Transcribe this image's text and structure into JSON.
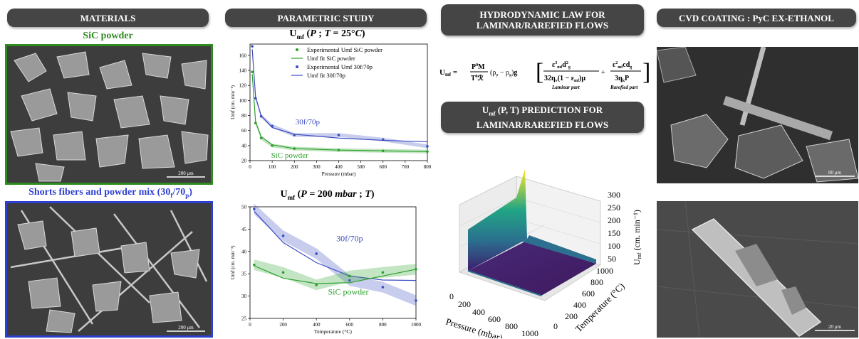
{
  "headers": {
    "materials": "MATERIALS",
    "parametric": "PARAMETRIC STUDY",
    "hydro": [
      "HYDRODYNAMIC LAW FOR",
      "LAMINAR/RAREFIED FLOWS"
    ],
    "prediction": [
      "Uₘᶠ (P, T) PREDICTION FOR",
      "LAMINAR/RAREFIED FLOWS"
    ],
    "cvd": "CVD COATING : PyC EX-ETHANOL"
  },
  "materials": {
    "sic_label": "SiC powder",
    "mix_label": "Shorts fibers and powder mix (30f/70p)",
    "scale1": "200 μm",
    "scale2": "200 μm"
  },
  "cvd": {
    "scale1": "80 μm",
    "scale2": "20 μm"
  },
  "colors": {
    "green": "#2ca02c",
    "blue": "#3b4cc0",
    "panel": "#454545"
  },
  "equation": {
    "lhs": "Umf =",
    "laminar": "Laminar part",
    "rarefied": "Rarefied part"
  },
  "chart_data": [
    {
      "type": "line",
      "title": "Umf (P ; T = 25°C)",
      "xlabel": "Pressure (mbar)",
      "ylabel": "Umf (cm. min⁻¹)",
      "xlim": [
        0,
        800
      ],
      "ylim": [
        20,
        175
      ],
      "xticks": [
        0,
        100,
        200,
        300,
        400,
        500,
        600,
        700,
        800
      ],
      "yticks": [
        20,
        40,
        60,
        80,
        100,
        120,
        140,
        160
      ],
      "legend": [
        "Experimental Umf SiC powder",
        "Umf fit SiC powder",
        "Experimental Umf 30f/70p",
        "Umf fit 30f/70p"
      ],
      "legend_position": "top-right",
      "annotations": [
        "30f/70p",
        "SiC powder"
      ],
      "series": [
        {
          "name": "Experimental Umf SiC powder",
          "x": [
            10,
            25,
            50,
            100,
            200,
            400,
            600,
            800
          ],
          "y": [
            138,
            70,
            50,
            40,
            36,
            34,
            33,
            32
          ]
        },
        {
          "name": "Umf fit SiC powder",
          "x": [
            10,
            25,
            50,
            100,
            200,
            400,
            600,
            800
          ],
          "y": [
            135,
            72,
            52,
            41,
            36,
            34,
            33,
            32
          ]
        },
        {
          "name": "Experimental Umf 30f/70p",
          "x": [
            10,
            25,
            50,
            100,
            200,
            400,
            600,
            800
          ],
          "y": [
            172,
            103,
            79,
            66,
            54,
            54,
            48,
            39
          ]
        },
        {
          "name": "Umf fit 30f/70p",
          "x": [
            10,
            25,
            50,
            100,
            200,
            400,
            600,
            800
          ],
          "y": [
            168,
            105,
            80,
            64,
            55,
            50,
            47,
            45
          ]
        }
      ]
    },
    {
      "type": "line",
      "title": "Umf (P = 200 mbar ; T)",
      "xlabel": "Temperature (°C)",
      "ylabel": "Umf (cm. min⁻¹)",
      "xlim": [
        0,
        1000
      ],
      "ylim": [
        25,
        50
      ],
      "xticks": [
        0,
        200,
        400,
        600,
        800,
        1000
      ],
      "yticks": [
        25,
        30,
        35,
        40,
        45,
        50
      ],
      "annotations": [
        "30f/70p",
        "SiC powder"
      ],
      "series": [
        {
          "name": "Experimental Umf 30f/70p",
          "x": [
            25,
            200,
            400,
            600,
            800,
            1000
          ],
          "y": [
            49.5,
            43.5,
            39.5,
            33.5,
            32,
            29
          ]
        },
        {
          "name": "Umf fit 30f/70p",
          "x": [
            25,
            200,
            400,
            600,
            800,
            1000
          ],
          "y": [
            49,
            42,
            37.5,
            34.5,
            33.6,
            33.5
          ]
        },
        {
          "name": "Experimental Umf SiC powder",
          "x": [
            25,
            200,
            400,
            600,
            800,
            1000
          ],
          "y": [
            37,
            35.3,
            32.5,
            34.5,
            35.3,
            36
          ]
        },
        {
          "name": "Umf fit SiC powder",
          "x": [
            25,
            200,
            400,
            600,
            800,
            1000
          ],
          "y": [
            36.8,
            34,
            32.8,
            33,
            34.5,
            36
          ]
        }
      ]
    },
    {
      "type": "heatmap",
      "title": "",
      "xlabel": "Pressure (mbar)",
      "ylabel": "Temperature (°C)",
      "zlabel": "Umf (cm. min⁻¹)",
      "xticks": [
        0,
        200,
        400,
        600,
        800,
        1000
      ],
      "yticks": [
        0,
        200,
        400,
        600,
        800,
        1000
      ],
      "zticks": [
        50,
        100,
        150,
        200,
        250,
        300
      ]
    }
  ]
}
